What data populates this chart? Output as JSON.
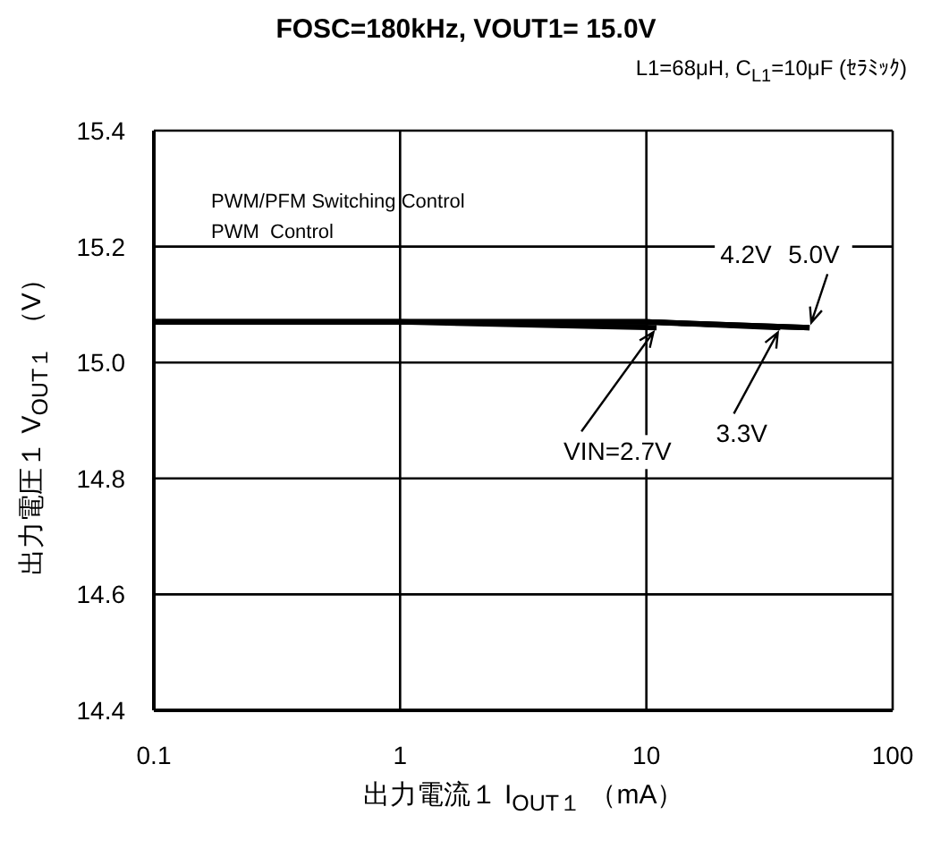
{
  "chart_data": {
    "type": "line",
    "title": "FOSC=180kHz, VOUT1= 15.0V",
    "subtitle": "L1=68μH, C$_{L1}$=10μF (ｾﾗﾐｯｸ)",
    "xlabel": "出力電流１ I$_{OUT１}$ （mA）",
    "ylabel": "出力電圧１ V$_{OUT１}$ （V）",
    "annotations": [
      "PWM/PFM Switching Control",
      "PWM  Control"
    ],
    "log": "x",
    "xlim": [
      0.1,
      100
    ],
    "xticks": [
      0.1,
      1,
      10,
      100
    ],
    "ylim": [
      14.4,
      15.4
    ],
    "yticks": [
      14.4,
      14.6,
      14.8,
      {
        "value": 15,
        "label": "15.0"
      },
      15.2,
      15.4
    ],
    "grid": true,
    "marker": "none",
    "line_style": "solid",
    "series": [
      {
        "name": "VIN=2.7V",
        "color": "#000000",
        "x": [
          0.1,
          1,
          11
        ],
        "values": [
          15.07,
          15.07,
          15.06
        ]
      },
      {
        "name": "3.3V",
        "color": "#000000",
        "x": [
          0.1,
          1,
          10,
          35
        ],
        "values": [
          15.07,
          15.07,
          15.07,
          15.06
        ]
      },
      {
        "name": "4.2V",
        "color": "#000000",
        "x": [
          0.1,
          1,
          10,
          46
        ],
        "values": [
          15.07,
          15.07,
          15.07,
          15.06
        ]
      },
      {
        "name": "5.0V",
        "color": "#000000",
        "x": [
          0.1,
          1,
          10,
          46
        ],
        "values": [
          15.07,
          15.07,
          15.07,
          15.06
        ]
      }
    ]
  }
}
